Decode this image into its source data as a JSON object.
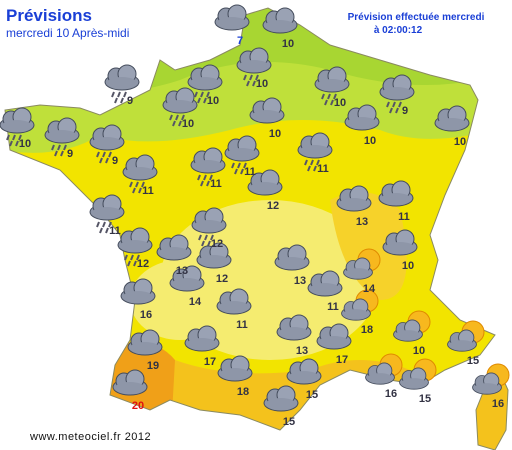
{
  "header": {
    "title": "Prévisions",
    "subtitle": "mercredi 10 Après-midi",
    "issued": "Prévision effectuée mercredi",
    "time": "à 02:00:12"
  },
  "footer": "www.meteociel.fr 2012",
  "stations": [
    {
      "temp": 7,
      "color": "#1a3fd6"
    },
    {
      "temp": 10,
      "color": "#333344"
    },
    {
      "temp": 9,
      "color": "#333344"
    },
    {
      "temp": 10,
      "color": "#333344"
    },
    {
      "temp": 10,
      "color": "#333344"
    },
    {
      "temp": 10,
      "color": "#333344"
    },
    {
      "temp": 9,
      "color": "#333344"
    },
    {
      "temp": 10,
      "color": "#333344"
    },
    {
      "temp": 9,
      "color": "#333344"
    },
    {
      "temp": 10,
      "color": "#333344"
    },
    {
      "temp": 9,
      "color": "#333344"
    },
    {
      "temp": 10,
      "color": "#333344"
    },
    {
      "temp": 10,
      "color": "#333344"
    },
    {
      "temp": 10,
      "color": "#333344"
    },
    {
      "temp": 11,
      "color": "#333344"
    },
    {
      "temp": 11,
      "color": "#333344"
    },
    {
      "temp": 11,
      "color": "#333344"
    },
    {
      "temp": 11,
      "color": "#333344"
    },
    {
      "temp": 12,
      "color": "#333344"
    },
    {
      "temp": 13,
      "color": "#333344"
    },
    {
      "temp": 11,
      "color": "#333344"
    },
    {
      "temp": 11,
      "color": "#333344"
    },
    {
      "temp": 12,
      "color": "#333344"
    },
    {
      "temp": 12,
      "color": "#333344"
    },
    {
      "temp": 13,
      "color": "#333344"
    },
    {
      "temp": 12,
      "color": "#333344"
    },
    {
      "temp": 10,
      "color": "#333344"
    },
    {
      "temp": 13,
      "color": "#333344"
    },
    {
      "temp": 14,
      "color": "#333344"
    },
    {
      "temp": 14,
      "color": "#333344"
    },
    {
      "temp": 11,
      "color": "#333344"
    },
    {
      "temp": 16,
      "color": "#333344"
    },
    {
      "temp": 11,
      "color": "#333344"
    },
    {
      "temp": 18,
      "color": "#333344"
    },
    {
      "temp": 13,
      "color": "#333344"
    },
    {
      "temp": 17,
      "color": "#333344"
    },
    {
      "temp": 17,
      "color": "#333344"
    },
    {
      "temp": 10,
      "color": "#333344"
    },
    {
      "temp": 15,
      "color": "#333344"
    },
    {
      "temp": 19,
      "color": "#333344"
    },
    {
      "temp": 18,
      "color": "#333344"
    },
    {
      "temp": 16,
      "color": "#333344"
    },
    {
      "temp": 15,
      "color": "#333344"
    },
    {
      "temp": 15,
      "color": "#333344"
    },
    {
      "temp": 20,
      "color": "#e01010"
    },
    {
      "temp": 16,
      "color": "#333344"
    },
    {
      "temp": 15,
      "color": "#333344"
    }
  ]
}
